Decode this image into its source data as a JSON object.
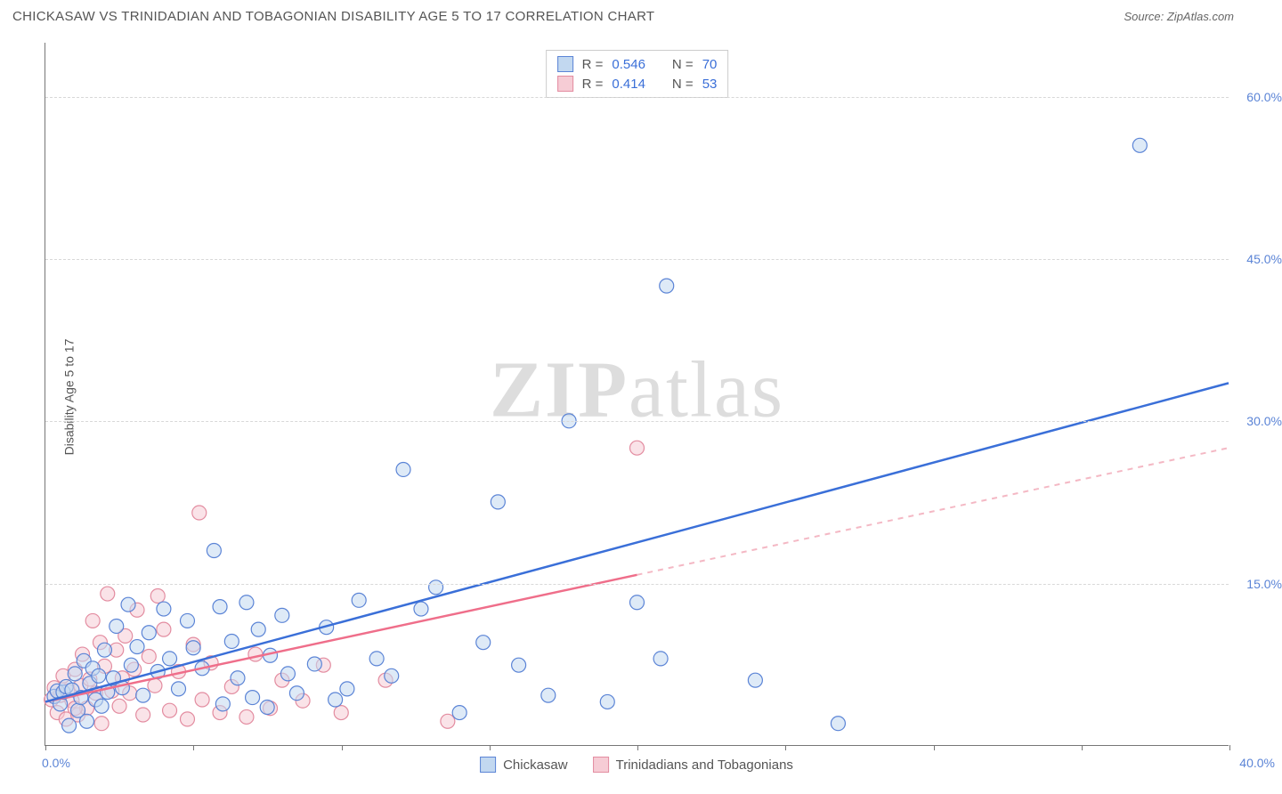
{
  "header": {
    "title": "CHICKASAW VS TRINIDADIAN AND TOBAGONIAN DISABILITY AGE 5 TO 17 CORRELATION CHART",
    "source": "Source: ZipAtlas.com"
  },
  "watermark": "ZIPatlas",
  "chart": {
    "type": "scatter",
    "y_axis_label": "Disability Age 5 to 17",
    "xlim": [
      0,
      40
    ],
    "ylim": [
      0,
      65
    ],
    "x_ticks": [
      0,
      5,
      10,
      15,
      20,
      25,
      30,
      35,
      40
    ],
    "x_tick_labels": {
      "0": "0.0%",
      "40": "40.0%"
    },
    "y_ticks": [
      15,
      30,
      45,
      60
    ],
    "y_tick_labels": [
      "15.0%",
      "30.0%",
      "45.0%",
      "60.0%"
    ],
    "background_color": "#ffffff",
    "grid_color": "#d8d8d8",
    "axis_label_color": "#5b84d6",
    "series": [
      {
        "name": "Chickasaw",
        "color_fill": "#c2d8f0",
        "color_stroke": "#5b84d6",
        "marker_radius": 8,
        "fill_opacity": 0.55,
        "trend": {
          "x1": 0,
          "y1": 4.0,
          "x2": 40,
          "y2": 33.5,
          "solid_until_x": 40,
          "line_color": "#3a6fd8",
          "line_width": 2.5
        },
        "R": "0.546",
        "N": "70",
        "points": [
          [
            0.3,
            4.5
          ],
          [
            0.4,
            5.0
          ],
          [
            0.5,
            3.8
          ],
          [
            0.6,
            4.9
          ],
          [
            0.7,
            5.4
          ],
          [
            0.8,
            1.8
          ],
          [
            0.9,
            5.1
          ],
          [
            1.0,
            6.6
          ],
          [
            1.1,
            3.2
          ],
          [
            1.2,
            4.4
          ],
          [
            1.3,
            7.8
          ],
          [
            1.4,
            2.2
          ],
          [
            1.5,
            5.7
          ],
          [
            1.6,
            7.1
          ],
          [
            1.7,
            4.2
          ],
          [
            1.8,
            6.4
          ],
          [
            1.9,
            3.6
          ],
          [
            2.0,
            8.8
          ],
          [
            2.1,
            4.9
          ],
          [
            2.3,
            6.2
          ],
          [
            2.4,
            11.0
          ],
          [
            2.6,
            5.3
          ],
          [
            2.8,
            13.0
          ],
          [
            2.9,
            7.4
          ],
          [
            3.1,
            9.1
          ],
          [
            3.3,
            4.6
          ],
          [
            3.5,
            10.4
          ],
          [
            3.8,
            6.8
          ],
          [
            4.0,
            12.6
          ],
          [
            4.2,
            8.0
          ],
          [
            4.5,
            5.2
          ],
          [
            4.8,
            11.5
          ],
          [
            5.0,
            9.0
          ],
          [
            5.3,
            7.1
          ],
          [
            5.7,
            18.0
          ],
          [
            5.9,
            12.8
          ],
          [
            6.0,
            3.8
          ],
          [
            6.3,
            9.6
          ],
          [
            6.5,
            6.2
          ],
          [
            6.8,
            13.2
          ],
          [
            7.0,
            4.4
          ],
          [
            7.2,
            10.7
          ],
          [
            7.6,
            8.3
          ],
          [
            8.0,
            12.0
          ],
          [
            8.2,
            6.6
          ],
          [
            8.5,
            4.8
          ],
          [
            9.1,
            7.5
          ],
          [
            9.5,
            10.9
          ],
          [
            10.2,
            5.2
          ],
          [
            10.6,
            13.4
          ],
          [
            11.2,
            8.0
          ],
          [
            11.7,
            6.4
          ],
          [
            12.1,
            25.5
          ],
          [
            12.7,
            12.6
          ],
          [
            13.2,
            14.6
          ],
          [
            14.0,
            3.0
          ],
          [
            14.8,
            9.5
          ],
          [
            15.3,
            22.5
          ],
          [
            16.0,
            7.4
          ],
          [
            17.0,
            4.6
          ],
          [
            17.7,
            30.0
          ],
          [
            19.0,
            4.0
          ],
          [
            20.0,
            13.2
          ],
          [
            20.8,
            8.0
          ],
          [
            21.0,
            42.5
          ],
          [
            24.0,
            6.0
          ],
          [
            26.8,
            2.0
          ],
          [
            37.0,
            55.5
          ],
          [
            7.5,
            3.5
          ],
          [
            9.8,
            4.2
          ]
        ]
      },
      {
        "name": "Trinidadians and Tobagonians",
        "color_fill": "#f6ccd5",
        "color_stroke": "#e38ca0",
        "marker_radius": 8,
        "fill_opacity": 0.55,
        "trend": {
          "x1": 0,
          "y1": 4.0,
          "x2": 40,
          "y2": 27.5,
          "solid_until_x": 20,
          "line_color": "#ef6e8a",
          "line_width": 2.5,
          "dash_color": "#f4b8c4"
        },
        "R": "0.414",
        "N": "53",
        "points": [
          [
            0.2,
            4.2
          ],
          [
            0.3,
            5.3
          ],
          [
            0.4,
            3.0
          ],
          [
            0.5,
            4.6
          ],
          [
            0.6,
            6.4
          ],
          [
            0.7,
            2.4
          ],
          [
            0.75,
            5.0
          ],
          [
            0.9,
            4.1
          ],
          [
            1.0,
            7.0
          ],
          [
            1.1,
            2.8
          ],
          [
            1.2,
            5.5
          ],
          [
            1.25,
            8.4
          ],
          [
            1.4,
            3.4
          ],
          [
            1.5,
            6.1
          ],
          [
            1.6,
            11.5
          ],
          [
            1.7,
            4.8
          ],
          [
            1.85,
            9.5
          ],
          [
            1.9,
            2.0
          ],
          [
            2.0,
            7.3
          ],
          [
            2.1,
            14.0
          ],
          [
            2.25,
            5.0
          ],
          [
            2.4,
            8.8
          ],
          [
            2.5,
            3.6
          ],
          [
            2.7,
            10.1
          ],
          [
            2.85,
            4.8
          ],
          [
            3.0,
            7.0
          ],
          [
            3.1,
            12.5
          ],
          [
            3.3,
            2.8
          ],
          [
            3.5,
            8.2
          ],
          [
            3.7,
            5.5
          ],
          [
            4.0,
            10.7
          ],
          [
            4.2,
            3.2
          ],
          [
            4.5,
            6.8
          ],
          [
            4.8,
            2.4
          ],
          [
            5.0,
            9.3
          ],
          [
            5.3,
            4.2
          ],
          [
            5.6,
            7.6
          ],
          [
            5.9,
            3.0
          ],
          [
            5.2,
            21.5
          ],
          [
            6.3,
            5.4
          ],
          [
            6.8,
            2.6
          ],
          [
            7.1,
            8.4
          ],
          [
            7.6,
            3.4
          ],
          [
            8.0,
            6.0
          ],
          [
            8.7,
            4.1
          ],
          [
            9.4,
            7.4
          ],
          [
            10.0,
            3.0
          ],
          [
            11.5,
            6.0
          ],
          [
            13.6,
            2.2
          ],
          [
            20.0,
            27.5
          ],
          [
            3.8,
            13.8
          ],
          [
            2.6,
            6.2
          ],
          [
            1.0,
            3.4
          ]
        ]
      }
    ]
  },
  "legend_series": [
    {
      "swatch": "blue",
      "label": "Chickasaw"
    },
    {
      "swatch": "pink",
      "label": "Trinidadians and Tobagonians"
    }
  ]
}
